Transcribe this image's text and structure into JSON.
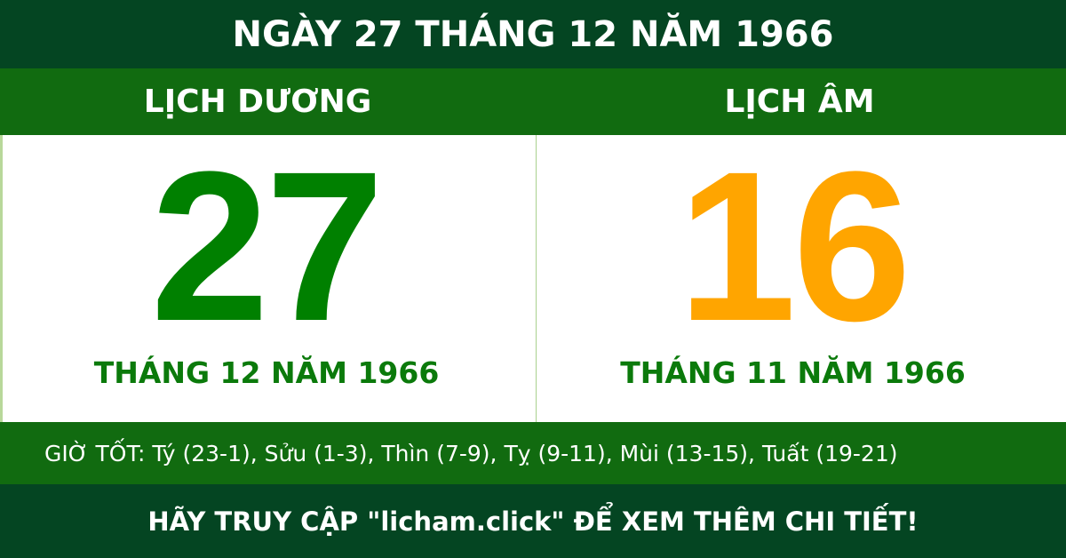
{
  "header": {
    "title": "NGÀY 27 THÁNG 12 NĂM 1966"
  },
  "solar": {
    "label": "LỊCH DƯƠNG",
    "day": "27",
    "month_year": "THÁNG 12 NĂM 1966"
  },
  "lunar": {
    "label": "LỊCH ÂM",
    "day": "16",
    "month_year": "THÁNG 11 NĂM 1966"
  },
  "good_hours": "GIỜ TỐT: Tý (23-1), Sửu (1-3), Thìn (7-9), Tỵ (9-11), Mùi (13-15), Tuất (19-21)",
  "footer": "HÃY TRUY CẬP \"licham.click\" ĐỂ XEM THÊM CHI TIẾT!",
  "colors": {
    "dark_green": "#044522",
    "mid_green": "#116b10",
    "solar_day": "#008000",
    "lunar_day": "#ffa500"
  }
}
